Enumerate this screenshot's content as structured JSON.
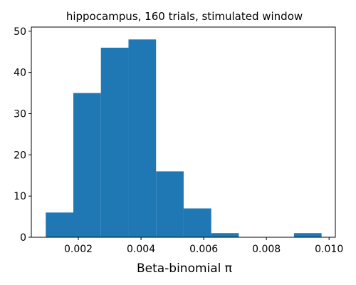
{
  "chart_data": {
    "type": "bar",
    "title": "hippocampus, 160 trials, stimulated window",
    "xlabel": "Beta-binomial π",
    "ylabel": "",
    "bin_edges": [
      0.00096,
      0.00184,
      0.00272,
      0.0036,
      0.00448,
      0.00536,
      0.00624,
      0.00712,
      0.008,
      0.00888,
      0.00976
    ],
    "values": [
      6,
      35,
      46,
      48,
      16,
      7,
      1,
      0,
      0,
      1
    ],
    "xlim": [
      0.0005,
      0.0102
    ],
    "ylim": [
      0,
      51
    ],
    "xticks": [
      0.002,
      0.004,
      0.006,
      0.008,
      0.01
    ],
    "xtick_labels": [
      "0.002",
      "0.004",
      "0.006",
      "0.008",
      "0.010"
    ],
    "yticks": [
      0,
      10,
      20,
      30,
      40,
      50
    ],
    "ytick_labels": [
      "0",
      "10",
      "20",
      "30",
      "40",
      "50"
    ],
    "bar_color": "#1f77b4",
    "grid": false,
    "legend": "none"
  }
}
